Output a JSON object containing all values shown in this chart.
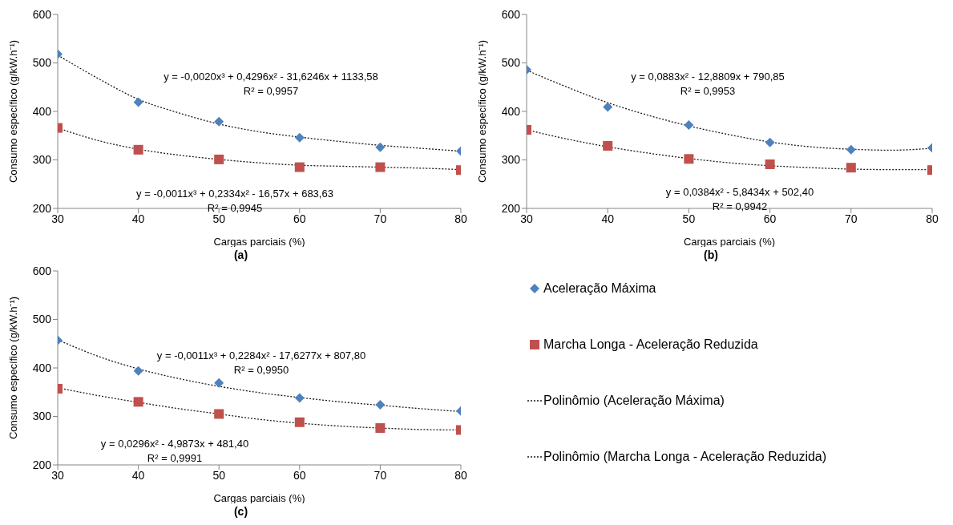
{
  "chart_data": [
    {
      "type": "scatter",
      "title": "(a)",
      "xlabel": "Cargas parciais (%)",
      "ylabel": "Consumo específico (g/kW.h⁻¹)",
      "xlim": [
        30,
        80
      ],
      "xticks": [
        30,
        40,
        50,
        60,
        70,
        80
      ],
      "ylim": [
        200,
        600
      ],
      "yticks": [
        200,
        300,
        400,
        500,
        600
      ],
      "grid": false,
      "legend": false,
      "x": [
        30,
        40,
        50,
        60,
        70,
        80
      ],
      "annotations": [
        "y = -0,0020x³ + 0,4296x² - 31,6246x + 1133,58",
        "R² = 0,9957",
        "y = -0,0011x³ + 0,2334x² - 16,57x + 683,63",
        "R² = 0,9945"
      ],
      "series": [
        {
          "type": "scatter",
          "color": "#4f81bd",
          "marker": "diamond",
          "values": [
            518,
            419,
            379,
            346,
            326,
            318
          ]
        },
        {
          "type": "scatter",
          "color": "#c0504d",
          "marker": "square",
          "values": [
            366,
            321,
            301,
            285,
            285,
            279
          ]
        },
        {
          "type": "line",
          "color": "#1a1a1a",
          "line_style": "dotted",
          "marker": "none",
          "x": [
            30,
            35,
            40,
            45,
            50,
            55,
            60,
            65,
            70,
            75,
            80
          ],
          "values": [
            516,
            468,
            425,
            397,
            374,
            358,
            347,
            338,
            330,
            324,
            318
          ]
        },
        {
          "type": "line",
          "color": "#1a1a1a",
          "line_style": "dotted",
          "marker": "none",
          "x": [
            30,
            35,
            40,
            45,
            50,
            55,
            60,
            65,
            70,
            75,
            80
          ],
          "values": [
            366,
            340,
            322,
            310,
            301,
            294,
            289,
            287,
            285,
            283,
            280
          ]
        }
      ]
    },
    {
      "type": "scatter",
      "title": "(b)",
      "xlabel": "Cargas parciais (%)",
      "ylabel": "Consumo específico (g/kW.h⁻¹)",
      "xlim": [
        30,
        80
      ],
      "xticks": [
        30,
        40,
        50,
        60,
        70,
        80
      ],
      "ylim": [
        200,
        600
      ],
      "yticks": [
        200,
        300,
        400,
        500,
        600
      ],
      "grid": false,
      "legend": false,
      "x": [
        30,
        40,
        50,
        60,
        70,
        80
      ],
      "annotations": [
        "y = 0,0883x² - 12,8809x + 790,85",
        "R² = 0,9953",
        "y = 0,0384x² - 5,8434x + 502,40",
        "R² = 0,9942"
      ],
      "series": [
        {
          "type": "scatter",
          "color": "#4f81bd",
          "marker": "diamond",
          "values": [
            486,
            409,
            372,
            336,
            321,
            325
          ]
        },
        {
          "type": "scatter",
          "color": "#c0504d",
          "marker": "square",
          "values": [
            362,
            329,
            302,
            291,
            284,
            279
          ]
        },
        {
          "type": "line",
          "color": "#1a1a1a",
          "line_style": "dotted",
          "marker": "none",
          "x": [
            30,
            35,
            40,
            45,
            50,
            55,
            60,
            65,
            70,
            75,
            80
          ],
          "values": [
            485,
            450,
            418,
            392,
            370,
            352,
            337,
            327,
            322,
            320,
            324
          ]
        },
        {
          "type": "line",
          "color": "#1a1a1a",
          "line_style": "dotted",
          "marker": "none",
          "x": [
            30,
            35,
            40,
            45,
            50,
            55,
            60,
            65,
            70,
            75,
            80
          ],
          "values": [
            362,
            343,
            327,
            314,
            303,
            294,
            288,
            284,
            281,
            280,
            280
          ]
        }
      ]
    },
    {
      "type": "scatter",
      "title": "(c)",
      "xlabel": "Cargas parciais (%)",
      "ylabel": "Consumo específico (g/kW.h⁻¹)",
      "xlim": [
        30,
        80
      ],
      "xticks": [
        30,
        40,
        50,
        60,
        70,
        80
      ],
      "ylim": [
        200,
        600
      ],
      "yticks": [
        200,
        300,
        400,
        500,
        600
      ],
      "grid": false,
      "legend": "right",
      "x": [
        30,
        40,
        50,
        60,
        70,
        80
      ],
      "annotations": [
        "y = -0,0011x³ + 0,2284x² - 17,6277x + 807,80",
        "R² = 0,9950",
        "y = 0,0296x² - 4,9873x + 481,40",
        "R² = 0,9991"
      ],
      "series": [
        {
          "type": "scatter",
          "name": "Aceleração Máxima",
          "color": "#4f81bd",
          "marker": "diamond",
          "values": [
            457,
            394,
            369,
            338,
            324,
            311
          ]
        },
        {
          "type": "scatter",
          "name": "Marcha Longa - Aceleração Reduzida",
          "color": "#c0504d",
          "marker": "square",
          "values": [
            357,
            330,
            305,
            288,
            276,
            272
          ]
        },
        {
          "type": "line",
          "name": "Polinômio (Aceleração Máxima)",
          "color": "#1a1a1a",
          "line_style": "dotted",
          "marker": "none",
          "x": [
            30,
            35,
            40,
            45,
            50,
            55,
            60,
            65,
            70,
            75,
            80
          ],
          "values": [
            458,
            424,
            398,
            378,
            362,
            349,
            339,
            330,
            323,
            316,
            310
          ]
        },
        {
          "type": "line",
          "name": "Polinômio (Marcha Longa - Aceleração Reduzida)",
          "color": "#1a1a1a",
          "line_style": "dotted",
          "marker": "none",
          "x": [
            30,
            35,
            40,
            45,
            50,
            55,
            60,
            65,
            70,
            75,
            80
          ],
          "values": [
            359,
            343,
            329,
            316,
            305,
            294,
            286,
            280,
            276,
            273,
            272
          ]
        }
      ]
    }
  ]
}
